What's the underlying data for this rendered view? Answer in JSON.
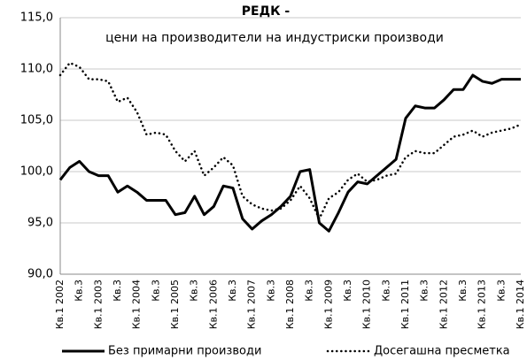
{
  "chart_data": {
    "type": "line",
    "title": "РЕДК -",
    "subtitle": "цени на производители на индустриски производи",
    "categories": [
      "Кв.1 2002",
      null,
      "Кв.3",
      null,
      "Кв.1 2003",
      null,
      "Кв.3",
      null,
      "Кв.1 2004",
      null,
      "Кв.3",
      null,
      "Кв.1 2005",
      null,
      "Кв.3",
      null,
      "Кв.1 2006",
      null,
      "Кв.3",
      null,
      "Кв.1 2007",
      null,
      "Кв.3",
      null,
      "Кв.1 2008",
      null,
      "Кв.3",
      null,
      "Кв.1 2009",
      null,
      "Кв.3",
      null,
      "Кв.1 2010",
      null,
      "Кв.3",
      null,
      "Кв.1 2011",
      null,
      "Кв.3",
      null,
      "Кв.1 2012",
      null,
      "Кв.3",
      null,
      "Кв.1 2013",
      null,
      "Кв.3",
      null,
      "Кв.1 2014"
    ],
    "series": [
      {
        "name": "Без примарни производи",
        "color": "#000000",
        "dash": "solid",
        "values": [
          99.2,
          100.4,
          101.0,
          100.0,
          99.6,
          99.6,
          98.0,
          98.6,
          98.0,
          97.2,
          97.2,
          97.2,
          95.8,
          96.0,
          97.6,
          95.8,
          96.6,
          98.6,
          98.4,
          95.4,
          94.4,
          95.2,
          95.8,
          96.6,
          97.6,
          100.0,
          100.2,
          95.0,
          94.2,
          96.0,
          98.0,
          99.0,
          98.8,
          99.6,
          100.4,
          101.2,
          105.2,
          106.4,
          106.2,
          106.2,
          107.0,
          108.0,
          108.0,
          109.4,
          108.8,
          108.6,
          109.0,
          109.0,
          109.0
        ]
      },
      {
        "name": "Досегашна пресметка",
        "color": "#000000",
        "dash": "dotted",
        "values": [
          109.4,
          110.6,
          110.2,
          109.0,
          109.0,
          108.8,
          106.8,
          107.2,
          105.8,
          103.6,
          103.8,
          103.6,
          102.0,
          101.0,
          102.0,
          99.6,
          100.4,
          101.4,
          100.6,
          97.6,
          96.8,
          96.4,
          96.2,
          96.4,
          97.2,
          98.6,
          97.4,
          95.4,
          97.4,
          98.0,
          99.2,
          99.8,
          99.0,
          99.2,
          99.6,
          99.8,
          101.4,
          102.0,
          101.8,
          101.8,
          102.6,
          103.4,
          103.6,
          104.0,
          103.4,
          103.8,
          104.0,
          104.2,
          104.6
        ]
      }
    ],
    "ylim": [
      90,
      115
    ],
    "yticks": [
      {
        "value": 90,
        "label": "90,0"
      },
      {
        "value": 95,
        "label": "95,0"
      },
      {
        "value": 100,
        "label": "100,0"
      },
      {
        "value": 105,
        "label": "105,0"
      },
      {
        "value": 110,
        "label": "110,0"
      },
      {
        "value": 115,
        "label": "115,0"
      }
    ],
    "grid": true,
    "legend": "bottom"
  }
}
